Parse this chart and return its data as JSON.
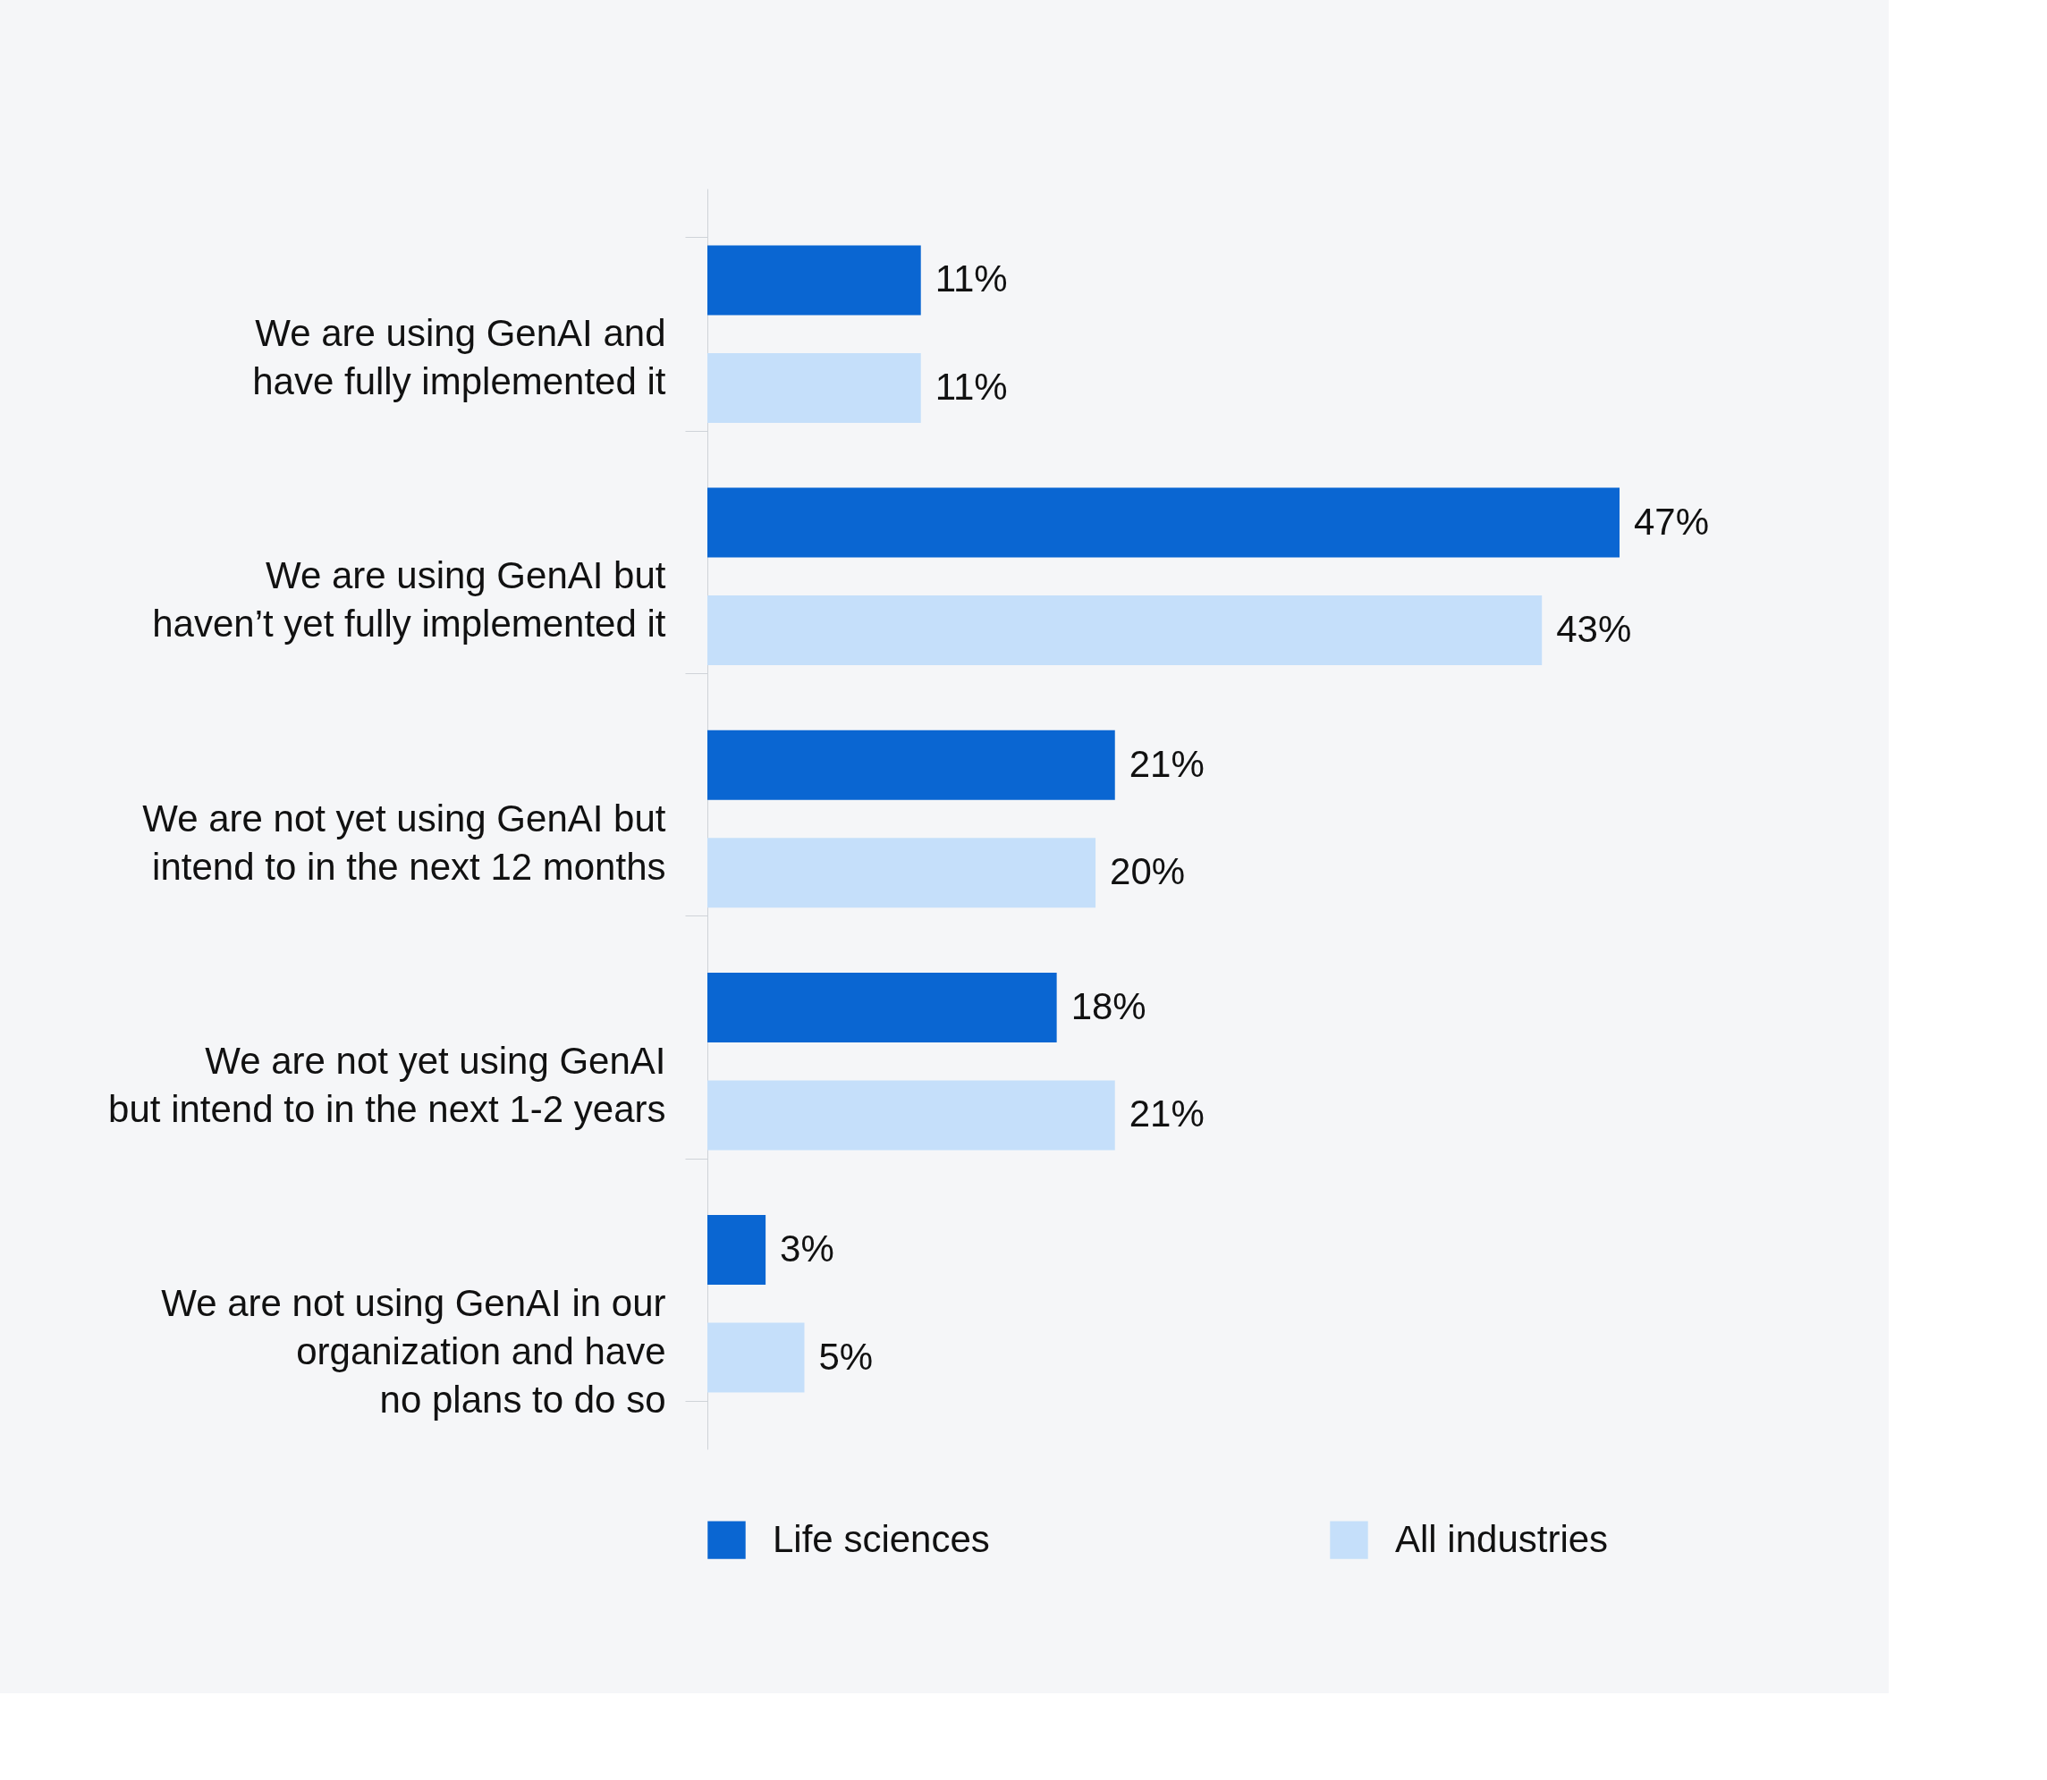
{
  "chart_data": {
    "type": "bar",
    "orientation": "horizontal",
    "legend": "bottom",
    "grid": false,
    "categories": [
      "We are using GenAI and\nhave fully implemented it",
      "We are using GenAI but\nhaven’t yet fully implemented it",
      "We are not yet using GenAI but\nintend to in the next 12 months",
      "We are not yet using GenAI\nbut intend to in the next 1-2 years",
      "We are not using GenAI in our\norganization and have\nno plans to do so"
    ],
    "series": [
      {
        "name": "Life sciences",
        "color": "#0a66d2",
        "values": [
          11,
          47,
          21,
          18,
          3
        ],
        "value_labels": [
          "11%",
          "47%",
          "21%",
          "18%",
          "3%"
        ]
      },
      {
        "name": "All industries",
        "color": "#c5dffa",
        "values": [
          11,
          43,
          20,
          21,
          5
        ],
        "value_labels": [
          "11%",
          "43%",
          "20%",
          "21%",
          "5%"
        ]
      }
    ]
  }
}
